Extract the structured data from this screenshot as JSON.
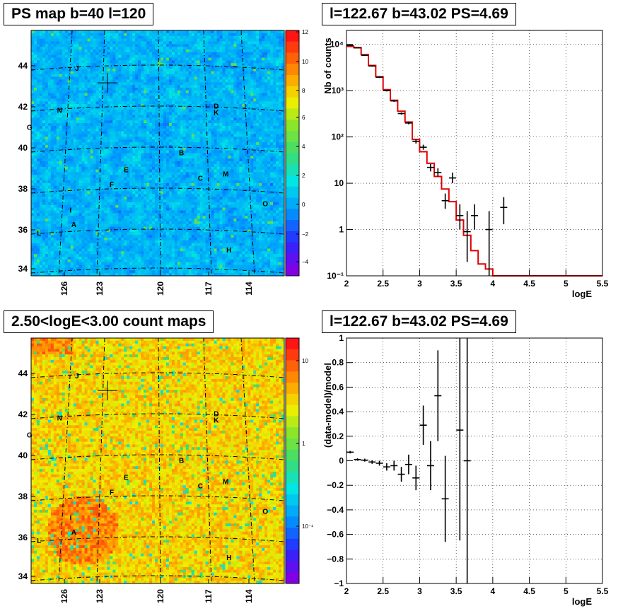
{
  "panels": {
    "map_ps": {
      "title": "PS map b=40 l=120"
    },
    "spectrum": {
      "title": "l=122.67 b=43.02 PS=4.69"
    },
    "map_counts": {
      "title": "2.50<logE<3.00 count maps"
    },
    "residual": {
      "title": "l=122.67 b=43.02 PS=4.69"
    }
  },
  "maps": {
    "lat_ticks": [
      "34",
      "36",
      "38",
      "40",
      "42",
      "44"
    ],
    "lon_ticks": [
      "126",
      "123",
      "120",
      "117",
      "114"
    ],
    "point_labels": [
      {
        "name": "J",
        "lon": 124.6,
        "lat": 43.6
      },
      {
        "name": "N",
        "lon": 125.7,
        "lat": 41.6
      },
      {
        "name": "G",
        "lon": 127.6,
        "lat": 40.8
      },
      {
        "name": "D",
        "lon": 115.8,
        "lat": 41.8
      },
      {
        "name": "K",
        "lon": 115.8,
        "lat": 41.5
      },
      {
        "name": "B",
        "lon": 118.0,
        "lat": 39.6
      },
      {
        "name": "E",
        "lon": 121.5,
        "lat": 38.8
      },
      {
        "name": "M",
        "lon": 115.2,
        "lat": 38.6
      },
      {
        "name": "C",
        "lon": 116.8,
        "lat": 38.4
      },
      {
        "name": "F",
        "lon": 122.4,
        "lat": 38.1
      },
      {
        "name": "O",
        "lon": 112.7,
        "lat": 37.2
      },
      {
        "name": "I",
        "lon": 125.0,
        "lat": 36.9
      },
      {
        "name": "A",
        "lon": 124.8,
        "lat": 36.2
      },
      {
        "name": "L",
        "lon": 127.0,
        "lat": 35.8
      },
      {
        "name": "H",
        "lon": 115.0,
        "lat": 35.0
      }
    ],
    "marker": {
      "lon": 122.67,
      "lat": 43.02
    },
    "ps_colorbar_ticks": [
      "12",
      "10",
      "8",
      "6",
      "4",
      "2",
      "0",
      "−2",
      "−4"
    ],
    "counts_colorbar_ticks": [
      "10",
      "1",
      "10⁻¹"
    ]
  },
  "chart_data": [
    {
      "type": "line",
      "panel": "spectrum",
      "title": "l=122.67 b=43.02 PS=4.69",
      "xlabel": "logE",
      "ylabel": "Nb of counts",
      "xlim": [
        2,
        5.5
      ],
      "ylim": [
        0.1,
        20000
      ],
      "yscale": "log",
      "x_ticks": [
        "2",
        "2.5",
        "3",
        "3.5",
        "4",
        "4.5",
        "5",
        "5.5"
      ],
      "y_ticks": [
        {
          "v": 0.1,
          "label": "10⁻¹"
        },
        {
          "v": 1,
          "label": "1"
        },
        {
          "v": 10,
          "label": "10"
        },
        {
          "v": 100,
          "label": "10²"
        },
        {
          "v": 1000,
          "label": "10³"
        },
        {
          "v": 10000,
          "label": "10⁴"
        }
      ],
      "grid": true,
      "series": [
        {
          "kind": "histogram",
          "color": "#e00000",
          "bin_edges": [
            2.0,
            2.1,
            2.2,
            2.3,
            2.4,
            2.5,
            2.6,
            2.7,
            2.8,
            2.9,
            3.0,
            3.1,
            3.2,
            3.3,
            3.4,
            3.5,
            3.6,
            3.7,
            3.8,
            3.9,
            4.0,
            5.5
          ],
          "values": [
            9000,
            8500,
            6000,
            3500,
            2000,
            1050,
            620,
            360,
            210,
            88,
            48,
            27,
            14,
            7.5,
            4.0,
            1.6,
            0.75,
            0.35,
            0.18,
            0.14,
            0.1
          ]
        },
        {
          "kind": "points",
          "color": "#000000",
          "x": [
            2.05,
            2.15,
            2.25,
            2.35,
            2.45,
            2.55,
            2.65,
            2.75,
            2.85,
            2.95,
            3.05,
            3.15,
            3.25,
            3.35,
            3.45,
            3.55,
            3.65,
            3.75,
            3.95,
            4.15
          ],
          "y": [
            9500,
            8400,
            5800,
            3400,
            1950,
            1000,
            600,
            320,
            200,
            80,
            60,
            22,
            17,
            4.2,
            13,
            2,
            0.9,
            2,
            1,
            3
          ],
          "err_low": [
            9300,
            8250,
            5650,
            3300,
            1880,
            960,
            575,
            304,
            187,
            72,
            53,
            18,
            14,
            2.8,
            10,
            1.0,
            0.2,
            1.0,
            0.0,
            1.3
          ],
          "err_high": [
            9700,
            8550,
            5950,
            3500,
            2020,
            1040,
            625,
            336,
            213,
            88,
            68,
            26,
            21,
            6,
            17,
            3.5,
            2.5,
            3.5,
            2.5,
            5
          ]
        }
      ]
    },
    {
      "type": "scatter",
      "panel": "residual",
      "title": "l=122.67 b=43.02 PS=4.69",
      "xlabel": "logE",
      "ylabel": "(data-model)/model",
      "xlim": [
        2,
        5.5
      ],
      "ylim": [
        -1,
        1
      ],
      "x_ticks": [
        "2",
        "2.5",
        "3",
        "3.5",
        "4",
        "4.5",
        "5",
        "5.5"
      ],
      "y_ticks": [
        "1",
        "0.8",
        "0.6",
        "0.4",
        "0.2",
        "0",
        "−0.2",
        "−0.4",
        "−0.6",
        "−0.8",
        "−1"
      ],
      "grid": true,
      "series": [
        {
          "kind": "points",
          "color": "#000000",
          "x": [
            2.05,
            2.15,
            2.25,
            2.35,
            2.45,
            2.55,
            2.65,
            2.75,
            2.85,
            2.95,
            3.05,
            3.15,
            3.25,
            3.35,
            3.55,
            3.65
          ],
          "y": [
            0.07,
            0.01,
            0.005,
            -0.01,
            -0.02,
            -0.05,
            -0.04,
            -0.11,
            -0.03,
            -0.14,
            0.29,
            -0.04,
            0.53,
            -0.31,
            0.25,
            0.0
          ],
          "err": [
            0.01,
            0.01,
            0.012,
            0.015,
            0.02,
            0.03,
            0.04,
            0.06,
            0.08,
            0.1,
            0.16,
            0.2,
            0.37,
            0.35,
            0.9,
            1.2
          ]
        }
      ]
    }
  ]
}
